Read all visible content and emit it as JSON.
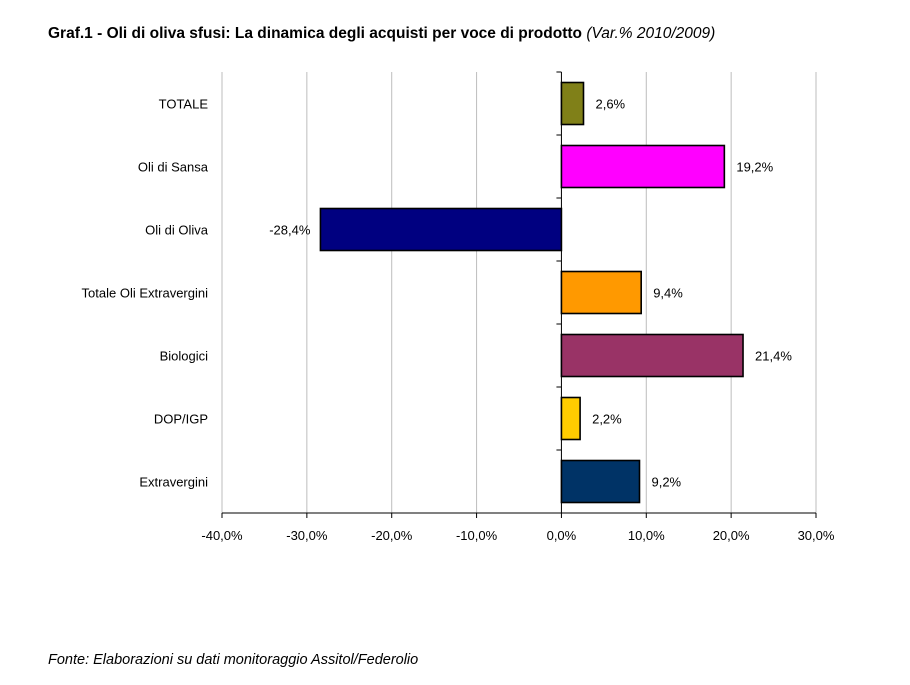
{
  "title": {
    "main": "Graf.1 - Oli di oliva sfusi: La dinamica degli acquisti per voce di prodotto",
    "sub": "(Var.% 2010/2009)"
  },
  "source": "Fonte: Elaborazioni su dati monitoraggio Assitol/Federolio",
  "chart_data": {
    "type": "bar",
    "orientation": "horizontal",
    "categories": [
      "TOTALE",
      "Oli di Sansa",
      "Oli di Oliva",
      "Totale Oli Extravergini",
      "Biologici",
      "DOP/IGP",
      "Extravergini"
    ],
    "values": [
      2.6,
      19.2,
      -28.4,
      9.4,
      21.4,
      2.2,
      9.2
    ],
    "labels": [
      "2,6%",
      "19,2%",
      "-28,4%",
      "9,4%",
      "21,4%",
      "2,2%",
      "9,2%"
    ],
    "colors": [
      "#808018",
      "#ff00ff",
      "#000080",
      "#ff9900",
      "#993366",
      "#ffcc00",
      "#003366"
    ],
    "xlim": [
      -40,
      30
    ],
    "xticks": [
      -40,
      -30,
      -20,
      -10,
      0,
      10,
      20,
      30
    ],
    "xtick_labels": [
      "-40,0%",
      "-30,0%",
      "-20,0%",
      "-10,0%",
      "0,0%",
      "10,0%",
      "20,0%",
      "30,0%"
    ],
    "grid": "vertical",
    "legend": "none",
    "xlabel": "",
    "ylabel": ""
  }
}
